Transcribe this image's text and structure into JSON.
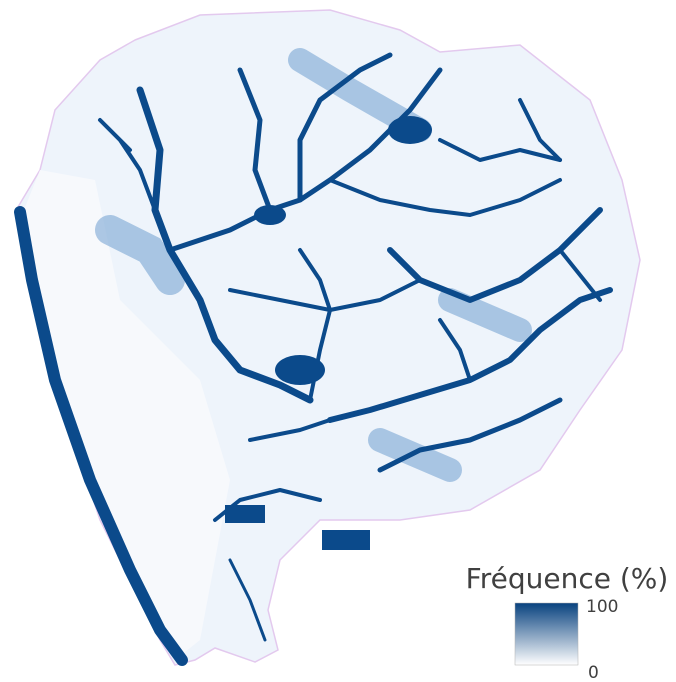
{
  "legend": {
    "title": "Fréquence (%)",
    "max": 100,
    "min": 0,
    "max_color": "#08427f",
    "min_color": "#ffffff"
  }
}
